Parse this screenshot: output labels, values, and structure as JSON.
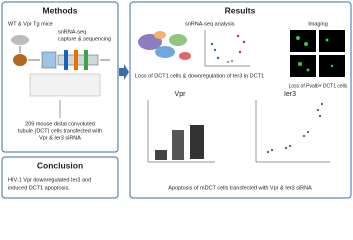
{
  "methods": {
    "title": "Methods",
    "mice": "WT & Vpr Tg mice",
    "snrna": [
      "snRNA-seq",
      "capture & sequencing"
    ],
    "cells": [
      "209 mouse distal convoluted",
      "tubule (DCT) cells transfected with",
      "Vpr & Ier3 siRNA"
    ]
  },
  "conclusion": {
    "title": "Conclusion",
    "text": [
      "HIV-1 Vpr downregulated Ier3 and",
      "induced DCT1 apoptosis."
    ]
  },
  "results": {
    "title": "Results",
    "analysis": "snRNA-seq analysis",
    "imaging": "Imaging",
    "loss_text": "Loss of DCT1 cells & downregulation of Ier3 in DCT1",
    "imaging_caption": "Loss of Pvalb+ DCT1 cells",
    "panels": [
      "Vpr",
      "Ier3"
    ],
    "caption": "Apoptosis of mDCT cells transfected with Vpr & Ier3 siRNA"
  }
}
